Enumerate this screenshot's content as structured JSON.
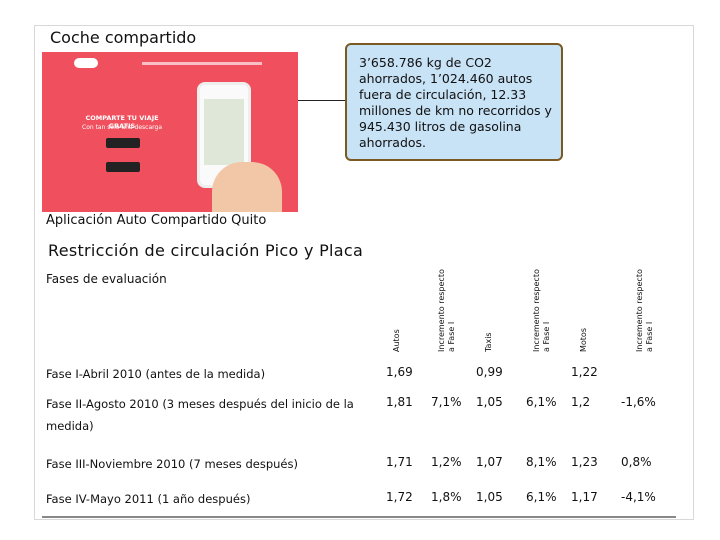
{
  "title": "Coche compartido",
  "image": {
    "headline": "COMPARTE TU VIAJE GRATIS",
    "subline": "Con tan solo una descarga"
  },
  "callout": "3’658.786 kg de CO2 ahorrados, 1’024.460 autos fuera de circulación, 12.33 millones de km no recorridos y 945.430 litros de gasolina ahorrados.",
  "caption": "Aplicación Auto Compartido Quito",
  "section_title": "Restricción de circulación Pico y Placa",
  "table": {
    "corner": "Fases de evaluación",
    "columns": [
      "Autos",
      "Incremento respecto a Fase I",
      "Taxis",
      "Incremento respecto a Fase I",
      "Motos",
      "Incremento respecto a Fase I"
    ],
    "rows": [
      [
        "Fase I-Abril 2010 (antes de la medida)",
        "1,69",
        null,
        "0,99",
        null,
        "1,22",
        null
      ],
      [
        "Fase II-Agosto 2010 (3 meses después del inicio de la medida)",
        "1,81",
        "7,1%",
        "1,05",
        "6,1%",
        "1,2",
        "-1,6%"
      ],
      [
        "Fase III-Noviembre 2010 (7 meses después)",
        "1,71",
        "1,2%",
        "1,07",
        "8,1%",
        "1,23",
        "0,8%"
      ],
      [
        "Fase IV-Mayo 2011 (1 año después)",
        "1,72",
        "1,8%",
        "1,05",
        "6,1%",
        "1,17",
        "-4,1%"
      ]
    ]
  }
}
